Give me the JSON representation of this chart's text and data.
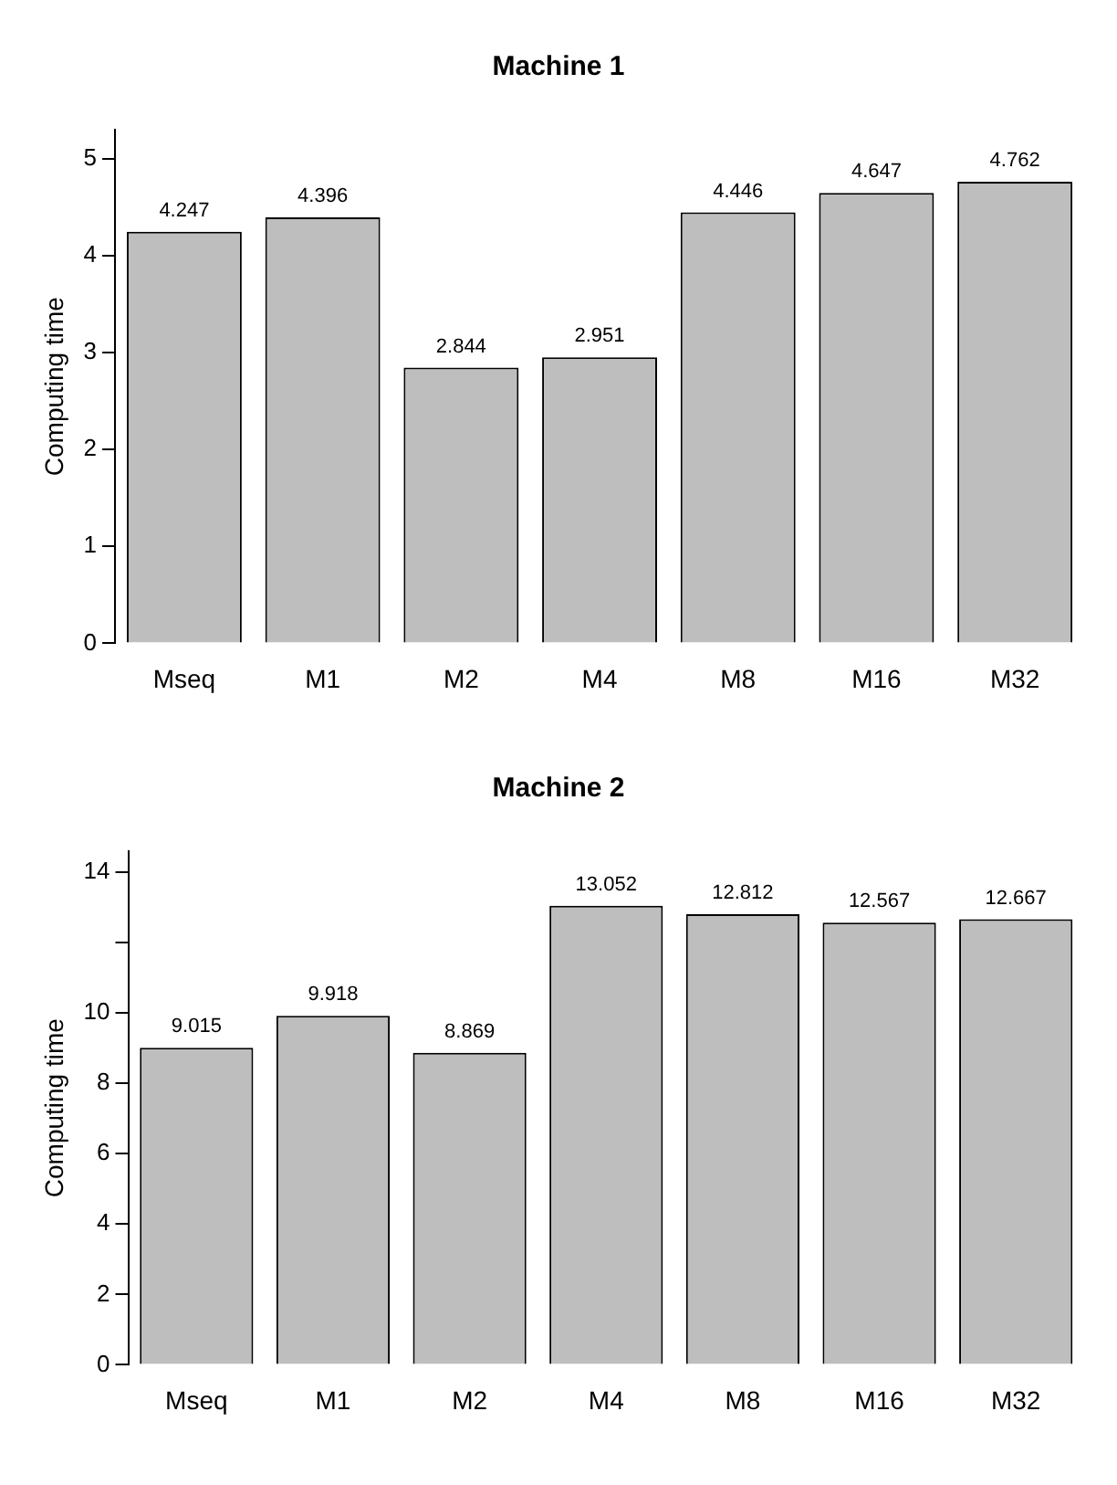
{
  "chart_data": [
    {
      "type": "bar",
      "title": "Machine 1",
      "ylabel": "Computing time",
      "categories": [
        "Mseq",
        "M1",
        "M2",
        "M4",
        "M8",
        "M16",
        "M32"
      ],
      "values": [
        4.247,
        4.396,
        2.844,
        2.951,
        4.446,
        4.647,
        4.762
      ],
      "color": "#bebebe",
      "ylim": [
        0,
        5.3
      ],
      "yticks": [
        0,
        1,
        2,
        3,
        4,
        5
      ],
      "grid": false,
      "legend": false,
      "data_labels": true
    },
    {
      "type": "bar",
      "title": "Machine 2",
      "ylabel": "Computing time",
      "categories": [
        "Mseq",
        "M1",
        "M2",
        "M4",
        "M8",
        "M16",
        "M32"
      ],
      "values": [
        9.015,
        9.918,
        8.869,
        13.052,
        12.812,
        12.567,
        12.667
      ],
      "color": "#bebebe",
      "ylim": [
        0,
        14.6
      ],
      "yticks": [
        0,
        2,
        4,
        6,
        8,
        10,
        {
          "value": 12,
          "label": null
        },
        14
      ],
      "grid": false,
      "legend": false,
      "data_labels": true
    }
  ]
}
